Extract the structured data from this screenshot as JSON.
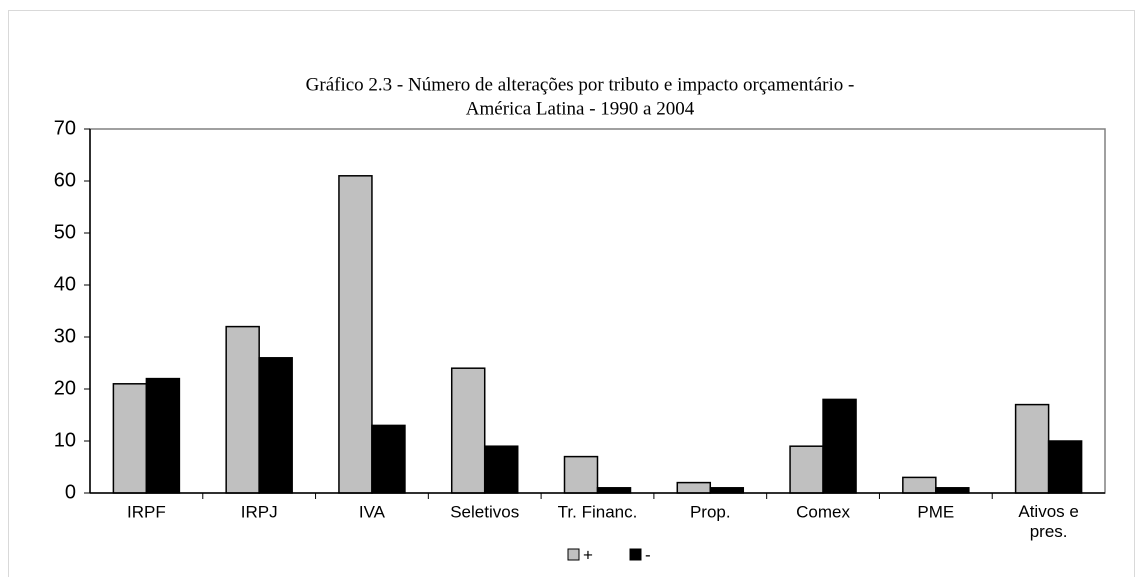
{
  "chart_data": {
    "type": "bar",
    "title": [
      "Gráfico 2.3 - Número de alterações por tributo e impacto orçamentário -",
      "América Latina - 1990 a 2004"
    ],
    "categories": [
      "IRPF",
      "IRPJ",
      "IVA",
      "Seletivos",
      "Tr. Financ.",
      "Prop.",
      "Comex",
      "PME",
      "Ativos e pres."
    ],
    "series": [
      {
        "name": "+",
        "color": "#c0c0c0",
        "values": [
          21,
          32,
          61,
          24,
          7,
          2,
          9,
          3,
          17
        ]
      },
      {
        "name": "-",
        "color": "#000000",
        "values": [
          22,
          26,
          13,
          9,
          1,
          1,
          18,
          1,
          10
        ]
      }
    ],
    "ylim": [
      0,
      70
    ],
    "yticks": [
      0,
      10,
      20,
      30,
      40,
      50,
      60,
      70
    ],
    "grid": false,
    "legend": "bottom"
  }
}
